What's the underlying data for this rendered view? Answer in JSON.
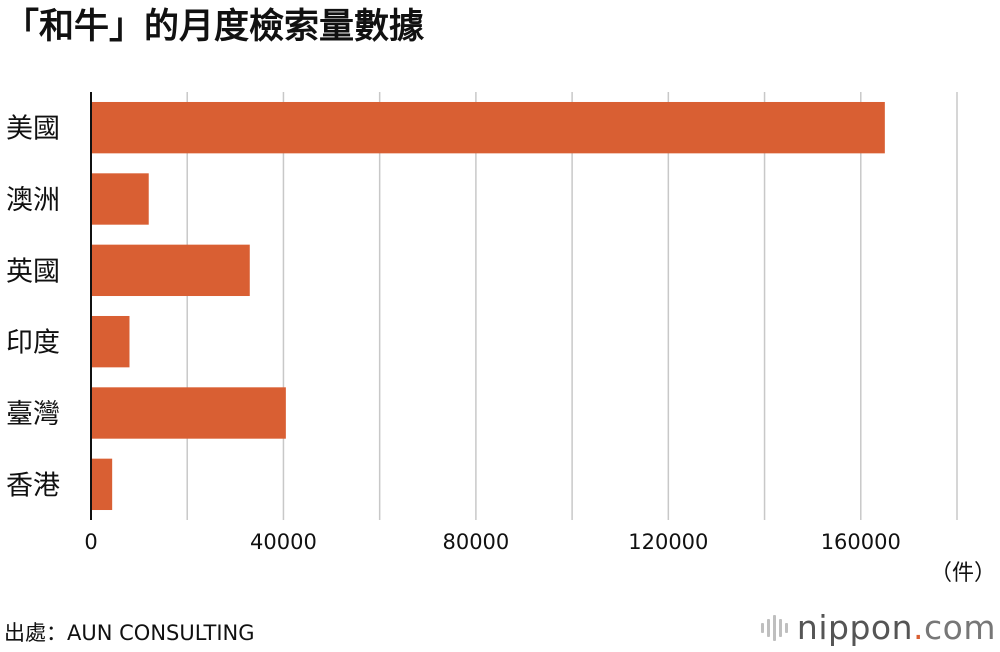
{
  "title": "「和牛」的月度檢索量數據",
  "chart_data": {
    "type": "bar",
    "orientation": "horizontal",
    "title": "「和牛」的月度檢索量數據",
    "categories": [
      "美國",
      "澳洲",
      "英國",
      "印度",
      "臺灣",
      "香港"
    ],
    "values": [
      165000,
      12000,
      33000,
      8000,
      40500,
      4400
    ],
    "xlim": [
      0,
      180000
    ],
    "x_ticks": [
      0,
      40000,
      80000,
      120000,
      160000
    ],
    "x_unit": "（件）",
    "grid": true,
    "bar_color": "#d95f33",
    "grid_color": "#c8c8c8"
  },
  "footer": {
    "source": "出處：AUN CONSULTING"
  },
  "logo": {
    "name": "nippon",
    "dot": ".",
    "tld": "com",
    "accent_color": "#d95f33"
  }
}
